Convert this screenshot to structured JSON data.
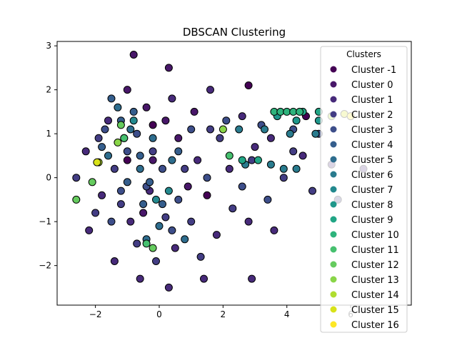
{
  "chart_data": {
    "type": "scatter",
    "title": "DBSCAN Clustering",
    "xlabel": "",
    "ylabel": "",
    "xlim": [
      -3.2,
      7.9
    ],
    "ylim": [
      -2.9,
      3.1
    ],
    "xticks": [
      -2,
      0,
      2,
      4,
      6
    ],
    "yticks": [
      -2,
      -1,
      0,
      1,
      2,
      3
    ],
    "grid": false,
    "legend": {
      "title": "Clusters",
      "placement": "top-right",
      "entries": [
        {
          "name": "Cluster -1",
          "color": "#440154"
        },
        {
          "name": "Cluster 0",
          "color": "#481769"
        },
        {
          "name": "Cluster 1",
          "color": "#472a7a"
        },
        {
          "name": "Cluster 2",
          "color": "#433d84"
        },
        {
          "name": "Cluster 3",
          "color": "#3d4e8a"
        },
        {
          "name": "Cluster 4",
          "color": "#355e8d"
        },
        {
          "name": "Cluster 5",
          "color": "#2e6d8e"
        },
        {
          "name": "Cluster 6",
          "color": "#297b8e"
        },
        {
          "name": "Cluster 7",
          "color": "#23898e"
        },
        {
          "name": "Cluster 8",
          "color": "#1f978b"
        },
        {
          "name": "Cluster 9",
          "color": "#21a585"
        },
        {
          "name": "Cluster 10",
          "color": "#2eb37c"
        },
        {
          "name": "Cluster 11",
          "color": "#46c06f"
        },
        {
          "name": "Cluster 12",
          "color": "#65cb5e"
        },
        {
          "name": "Cluster 13",
          "color": "#89d548"
        },
        {
          "name": "Cluster 14",
          "color": "#b0dd2f"
        },
        {
          "name": "Cluster 15",
          "color": "#d8e219"
        },
        {
          "name": "Cluster 16",
          "color": "#fde725"
        }
      ]
    },
    "series": [
      {
        "name": "Cluster -1",
        "points": [
          [
            2.8,
            2.1
          ],
          [
            -0.2,
            1.2
          ],
          [
            4.6,
            1.4
          ],
          [
            -1.0,
            0.4
          ],
          [
            1.5,
            -0.4
          ]
        ]
      },
      {
        "name": "Cluster 0",
        "points": [
          [
            -0.8,
            2.8
          ],
          [
            0.3,
            2.5
          ],
          [
            -0.4,
            1.6
          ],
          [
            0.6,
            0.9
          ],
          [
            -0.2,
            0.4
          ],
          [
            0.9,
            -0.2
          ],
          [
            -0.5,
            -0.8
          ],
          [
            0.2,
            1.3
          ],
          [
            1.1,
            1.5
          ],
          [
            -1.0,
            2.0
          ]
        ]
      },
      {
        "name": "Cluster 1",
        "points": [
          [
            -2.2,
            -1.2
          ],
          [
            -1.4,
            -1.9
          ],
          [
            -0.6,
            -2.3
          ],
          [
            0.3,
            -2.5
          ],
          [
            1.4,
            -2.3
          ],
          [
            2.9,
            -2.3
          ],
          [
            -1.8,
            -0.4
          ],
          [
            -0.9,
            -1.0
          ],
          [
            0.5,
            -1.6
          ],
          [
            1.8,
            -1.3
          ],
          [
            2.8,
            -1.0
          ],
          [
            3.6,
            -1.2
          ],
          [
            -1.6,
            1.3
          ],
          [
            -2.3,
            0.6
          ],
          [
            0.4,
            1.8
          ],
          [
            1.6,
            2.0
          ],
          [
            2.6,
            1.4
          ],
          [
            3.5,
            0.9
          ],
          [
            4.5,
            0.5
          ],
          [
            5.4,
            0.3
          ],
          [
            6.4,
            0.2
          ],
          [
            -0.3,
            -0.3
          ],
          [
            1.2,
            0.4
          ],
          [
            2.2,
            0.2
          ],
          [
            3.0,
            0.7
          ]
        ]
      },
      {
        "name": "Cluster 2",
        "points": [
          [
            -1.9,
            0.9
          ],
          [
            -2.6,
            0.0
          ],
          [
            -1.2,
            -0.6
          ],
          [
            -0.2,
            0.6
          ],
          [
            0.8,
            0.2
          ],
          [
            1.9,
            0.9
          ],
          [
            2.9,
            0.4
          ],
          [
            3.9,
            0.0
          ],
          [
            4.8,
            -0.3
          ],
          [
            5.6,
            -0.5
          ],
          [
            -0.7,
            -1.5
          ],
          [
            1.0,
            -1.0
          ],
          [
            2.3,
            -0.7
          ],
          [
            -1.4,
            0.2
          ],
          [
            0.2,
            -0.9
          ],
          [
            1.6,
            1.1
          ],
          [
            4.2,
            0.6
          ],
          [
            -2.0,
            -0.8
          ],
          [
            -0.1,
            -1.9
          ],
          [
            1.3,
            -1.8
          ]
        ]
      },
      {
        "name": "Cluster 3",
        "points": [
          [
            -1.7,
            1.1
          ],
          [
            -1.0,
            0.6
          ],
          [
            -0.4,
            -0.2
          ],
          [
            0.6,
            -0.5
          ],
          [
            1.5,
            0.0
          ],
          [
            -1.2,
            -0.3
          ],
          [
            2.1,
            1.3
          ],
          [
            3.2,
            1.2
          ],
          [
            4.2,
            1.1
          ],
          [
            5.0,
            1.0
          ],
          [
            0.1,
            0.2
          ],
          [
            -0.7,
            1.0
          ],
          [
            1.0,
            1.1
          ],
          [
            2.6,
            -0.2
          ],
          [
            3.4,
            -0.5
          ],
          [
            -1.5,
            -1.0
          ],
          [
            0.4,
            -1.2
          ]
        ]
      },
      {
        "name": "Cluster 4",
        "points": [
          [
            -1.5,
            1.8
          ],
          [
            -1.2,
            1.3
          ],
          [
            -0.6,
            0.5
          ],
          [
            -0.3,
            -0.1
          ],
          [
            0.1,
            -0.6
          ],
          [
            -1.0,
            -0.1
          ],
          [
            -0.5,
            -0.6
          ],
          [
            0.6,
            0.6
          ],
          [
            -1.8,
            0.7
          ],
          [
            -0.8,
            1.5
          ]
        ]
      },
      {
        "name": "Cluster 5",
        "points": [
          [
            -1.3,
            1.6
          ],
          [
            -0.9,
            1.1
          ],
          [
            -0.2,
            0.9
          ],
          [
            0.4,
            0.4
          ],
          [
            -0.6,
            0.2
          ],
          [
            -1.6,
            0.5
          ],
          [
            0.0,
            -1.1
          ],
          [
            -0.4,
            -1.4
          ],
          [
            0.8,
            -1.4
          ]
        ]
      },
      {
        "name": "Cluster 6",
        "points": [
          [
            2.5,
            1.1
          ],
          [
            3.3,
            1.1
          ],
          [
            4.1,
            1.0
          ],
          [
            4.9,
            1.0
          ],
          [
            2.7,
            0.3
          ],
          [
            3.5,
            0.3
          ],
          [
            4.3,
            0.2
          ],
          [
            3.9,
            0.2
          ]
        ]
      },
      {
        "name": "Cluster 7",
        "points": [
          [
            -0.8,
            1.3
          ],
          [
            -1.1,
            0.9
          ],
          [
            -0.1,
            -0.5
          ],
          [
            0.3,
            -0.3
          ]
        ]
      },
      {
        "name": "Cluster 8",
        "points": [
          [
            3.7,
            1.4
          ],
          [
            4.3,
            1.3
          ],
          [
            5.0,
            1.3
          ]
        ]
      },
      {
        "name": "Cluster 9",
        "points": [
          [
            2.6,
            0.4
          ],
          [
            3.1,
            0.4
          ],
          [
            4.5,
            1.5
          ],
          [
            5.0,
            1.5
          ]
        ]
      },
      {
        "name": "Cluster 10",
        "points": [
          [
            3.6,
            1.5
          ],
          [
            3.8,
            1.5
          ],
          [
            4.0,
            1.5
          ],
          [
            4.2,
            1.5
          ],
          [
            4.4,
            1.5
          ]
        ]
      },
      {
        "name": "Cluster 11",
        "points": [
          [
            -0.4,
            -1.5
          ],
          [
            -1.1,
            0.9
          ],
          [
            2.2,
            0.5
          ]
        ]
      },
      {
        "name": "Cluster 12",
        "points": [
          [
            -2.6,
            -0.5
          ],
          [
            -2.1,
            -0.1
          ],
          [
            -1.2,
            1.2
          ],
          [
            -0.2,
            -1.6
          ]
        ]
      },
      {
        "name": "Cluster 13",
        "points": [
          [
            -1.3,
            0.8
          ],
          [
            2.0,
            1.1
          ]
        ]
      },
      {
        "name": "Cluster 14",
        "points": [
          [
            -1.9,
            0.35
          ],
          [
            5.4,
            1.4
          ]
        ]
      },
      {
        "name": "Cluster 15",
        "points": [
          [
            -1.95,
            0.35
          ],
          [
            5.8,
            1.45
          ]
        ]
      },
      {
        "name": "Cluster 16",
        "points": [
          [
            6.0,
            1.4
          ]
        ]
      }
    ]
  }
}
